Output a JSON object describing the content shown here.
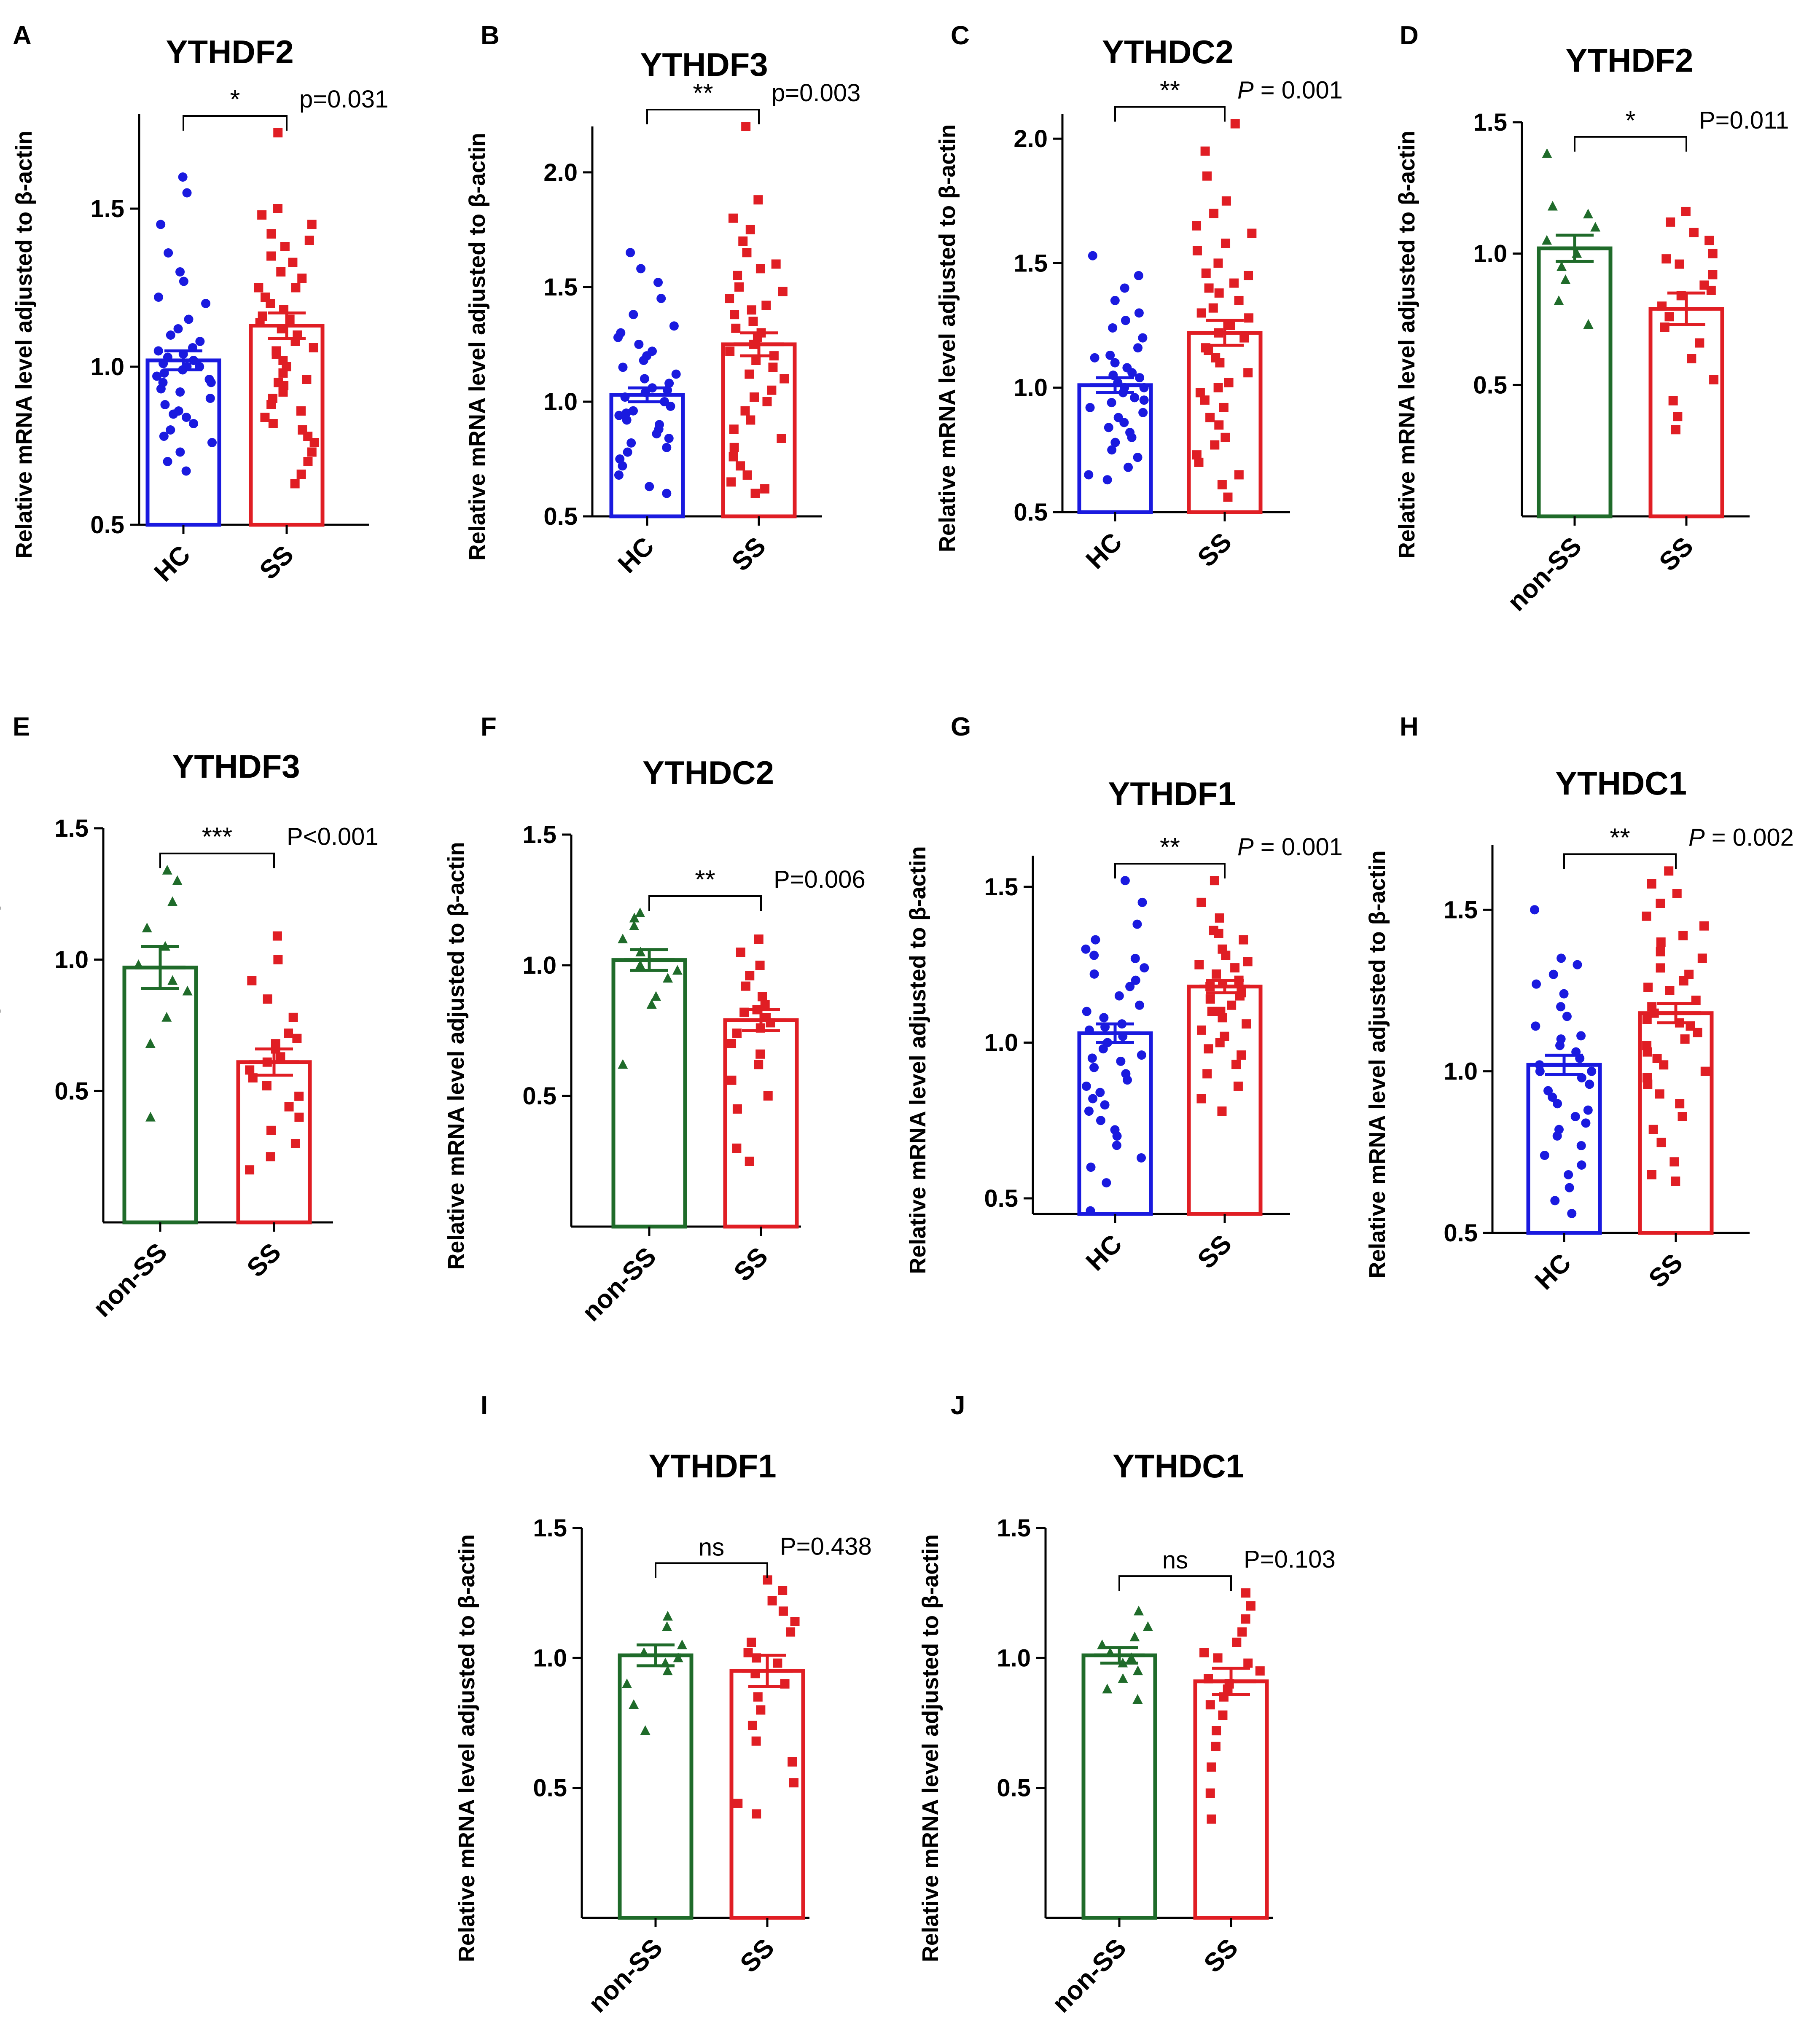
{
  "figure": {
    "ylabel": "Relative mRNA level adjusted to β-actin",
    "colors": {
      "HC": "#1a1adf",
      "SS": "#e01e24",
      "non-SS": "#1f6b2a",
      "axis": "#000000"
    }
  },
  "chart_data": [
    {
      "panel": "A",
      "type": "bar",
      "title": "YTHDF2",
      "ylabel": "Relative mRNA level adjusted to β-actin",
      "categories": [
        "HC",
        "SS"
      ],
      "ylim": [
        0.5,
        1.8
      ],
      "yticks": [
        0.5,
        1.0,
        1.5
      ],
      "means": [
        1.02,
        1.13
      ],
      "sem": [
        0.03,
        0.04
      ],
      "significance": "*",
      "pvalue": "p=0.031",
      "points": [
        [
          1.6,
          1.55,
          1.45,
          1.36,
          1.3,
          1.27,
          1.22,
          1.2,
          1.15,
          1.12,
          1.1,
          1.08,
          1.06,
          1.05,
          1.04,
          1.03,
          1.02,
          1.01,
          1.0,
          0.99,
          0.98,
          0.97,
          0.96,
          0.95,
          0.93,
          0.92,
          0.9,
          0.88,
          0.86,
          0.84,
          0.82,
          0.8,
          0.78,
          0.76,
          0.73,
          0.7,
          0.67,
          0.85,
          0.95,
          1.0
        ],
        [
          1.74,
          1.5,
          1.48,
          1.45,
          1.42,
          1.4,
          1.38,
          1.35,
          1.33,
          1.3,
          1.28,
          1.25,
          1.22,
          1.2,
          1.18,
          1.16,
          1.14,
          1.12,
          1.1,
          1.08,
          1.06,
          1.04,
          1.02,
          1.0,
          0.98,
          0.96,
          0.94,
          0.92,
          0.9,
          0.88,
          0.86,
          0.84,
          0.82,
          0.8,
          0.78,
          0.76,
          0.73,
          0.7,
          0.66,
          0.63,
          1.15,
          1.25,
          1.05,
          0.95
        ]
      ]
    },
    {
      "panel": "B",
      "type": "bar",
      "title": "YTHDF3",
      "ylabel": "Relative mRNA level adjusted to β-actin",
      "categories": [
        "HC",
        "SS"
      ],
      "ylim": [
        0.5,
        2.2
      ],
      "yticks": [
        0.5,
        1.0,
        1.5,
        2.0
      ],
      "means": [
        1.03,
        1.25
      ],
      "sem": [
        0.03,
        0.05
      ],
      "significance": "**",
      "pvalue": "p=0.003",
      "points": [
        [
          1.65,
          1.58,
          1.52,
          1.45,
          1.38,
          1.33,
          1.28,
          1.25,
          1.22,
          1.18,
          1.15,
          1.12,
          1.1,
          1.08,
          1.06,
          1.04,
          1.02,
          1.0,
          0.98,
          0.96,
          0.94,
          0.92,
          0.9,
          0.88,
          0.86,
          0.84,
          0.82,
          0.8,
          0.78,
          0.75,
          0.72,
          0.68,
          0.63,
          0.6,
          1.05,
          0.95,
          1.2,
          1.3
        ],
        [
          2.2,
          1.88,
          1.8,
          1.75,
          1.7,
          1.65,
          1.6,
          1.55,
          1.5,
          1.45,
          1.42,
          1.38,
          1.35,
          1.32,
          1.28,
          1.25,
          1.22,
          1.2,
          1.18,
          1.15,
          1.12,
          1.1,
          1.05,
          1.0,
          0.96,
          0.92,
          0.88,
          0.84,
          0.8,
          0.76,
          0.72,
          0.68,
          0.65,
          0.62,
          0.6,
          1.4,
          1.3,
          1.48,
          1.58,
          1.02
        ]
      ]
    },
    {
      "panel": "C",
      "type": "bar",
      "title": "YTHDC2",
      "ylabel": "Relative mRNA level adjusted to β-actin",
      "categories": [
        "HC",
        "SS"
      ],
      "ylim": [
        0.5,
        2.1
      ],
      "yticks": [
        0.5,
        1.0,
        1.5,
        2.0
      ],
      "means": [
        1.01,
        1.22
      ],
      "sem": [
        0.03,
        0.05
      ],
      "significance": "**",
      "pvalue": "P = 0.001",
      "points": [
        [
          1.53,
          1.45,
          1.4,
          1.35,
          1.3,
          1.27,
          1.24,
          1.2,
          1.16,
          1.13,
          1.1,
          1.08,
          1.06,
          1.04,
          1.02,
          1.0,
          0.98,
          0.96,
          0.94,
          0.92,
          0.9,
          0.88,
          0.86,
          0.84,
          0.82,
          0.8,
          0.78,
          0.75,
          0.72,
          0.68,
          0.65,
          0.63,
          1.05,
          0.95,
          1.0,
          1.12
        ],
        [
          2.06,
          1.95,
          1.85,
          1.75,
          1.7,
          1.65,
          1.62,
          1.58,
          1.55,
          1.5,
          1.46,
          1.42,
          1.4,
          1.35,
          1.32,
          1.28,
          1.25,
          1.22,
          1.2,
          1.16,
          1.12,
          1.1,
          1.06,
          1.02,
          0.98,
          0.95,
          0.92,
          0.88,
          0.85,
          0.8,
          0.77,
          0.73,
          0.7,
          0.65,
          0.61,
          0.56,
          1.45,
          1.3,
          1.38,
          1.15,
          1.0
        ]
      ]
    },
    {
      "panel": "D",
      "type": "bar",
      "title": "YTHDF2",
      "ylabel": "Relative mRNA level adjusted to β-actin",
      "categories": [
        "non-SS",
        "SS"
      ],
      "ylim": [
        0.0,
        1.5
      ],
      "yticks": [
        0.5,
        1.0,
        1.5
      ],
      "means": [
        1.02,
        0.79
      ],
      "sem": [
        0.05,
        0.06
      ],
      "significance": "*",
      "pvalue": "P=0.011",
      "points": [
        [
          1.38,
          1.18,
          1.15,
          1.1,
          1.05,
          1.0,
          0.95,
          0.9,
          0.82,
          0.73
        ],
        [
          1.16,
          1.12,
          1.08,
          1.05,
          1.0,
          0.96,
          0.92,
          0.88,
          0.84,
          0.8,
          0.76,
          0.72,
          0.66,
          0.6,
          0.52,
          0.44,
          0.38,
          0.33,
          0.98,
          0.86
        ]
      ]
    },
    {
      "panel": "E",
      "type": "bar",
      "title": "YTHDF3",
      "ylabel": "Relative mRNA level adjusted to β-actin",
      "categories": [
        "non-SS",
        "SS"
      ],
      "ylim": [
        0.0,
        1.5
      ],
      "yticks": [
        0.5,
        1.0,
        1.5
      ],
      "means": [
        0.97,
        0.61
      ],
      "sem": [
        0.08,
        0.05
      ],
      "significance": "***",
      "pvalue": "P<0.001",
      "points": [
        [
          1.34,
          1.3,
          1.22,
          1.12,
          1.05,
          0.98,
          0.92,
          0.88,
          0.78,
          0.68,
          0.4
        ],
        [
          1.09,
          1.0,
          0.92,
          0.85,
          0.78,
          0.72,
          0.68,
          0.66,
          0.63,
          0.61,
          0.58,
          0.55,
          0.52,
          0.48,
          0.44,
          0.4,
          0.35,
          0.3,
          0.25,
          0.2,
          0.7
        ]
      ]
    },
    {
      "panel": "F",
      "type": "bar",
      "title": "YTHDC2",
      "ylabel": "Relative mRNA level adjusted to β-actin",
      "categories": [
        "non-SS",
        "SS"
      ],
      "ylim": [
        0.0,
        1.5
      ],
      "yticks": [
        0.5,
        1.0,
        1.5
      ],
      "means": [
        1.02,
        0.79
      ],
      "sem": [
        0.04,
        0.04
      ],
      "significance": "**",
      "pvalue": "P=0.006",
      "points": [
        [
          1.2,
          1.18,
          1.15,
          1.1,
          1.05,
          1.0,
          0.98,
          0.95,
          0.88,
          0.85,
          0.62
        ],
        [
          1.1,
          1.05,
          1.0,
          0.96,
          0.92,
          0.88,
          0.85,
          0.82,
          0.8,
          0.78,
          0.76,
          0.74,
          0.7,
          0.66,
          0.62,
          0.56,
          0.5,
          0.45,
          0.3,
          0.25,
          0.83
        ]
      ]
    },
    {
      "panel": "G",
      "type": "bar",
      "title": "YTHDF1",
      "ylabel": "Relative mRNA level adjusted to β-actin",
      "categories": [
        "HC",
        "SS"
      ],
      "ylim": [
        0.45,
        1.6
      ],
      "yticks": [
        0.5,
        1.0,
        1.5
      ],
      "means": [
        1.03,
        1.18
      ],
      "sem": [
        0.03,
        0.02
      ],
      "significance": "**",
      "pvalue": "P = 0.001",
      "points": [
        [
          1.52,
          1.45,
          1.38,
          1.33,
          1.3,
          1.27,
          1.24,
          1.2,
          1.18,
          1.15,
          1.12,
          1.1,
          1.08,
          1.06,
          1.04,
          1.02,
          1.0,
          0.98,
          0.96,
          0.94,
          0.92,
          0.9,
          0.88,
          0.86,
          0.84,
          0.82,
          0.8,
          0.78,
          0.75,
          0.72,
          0.7,
          0.67,
          0.63,
          0.6,
          0.55,
          0.46,
          1.28,
          1.22,
          1.05,
          0.95
        ],
        [
          1.52,
          1.45,
          1.4,
          1.36,
          1.33,
          1.3,
          1.28,
          1.26,
          1.24,
          1.22,
          1.2,
          1.19,
          1.18,
          1.16,
          1.14,
          1.12,
          1.1,
          1.08,
          1.06,
          1.04,
          1.02,
          1.0,
          0.98,
          0.96,
          0.93,
          0.9,
          0.86,
          0.82,
          0.78,
          1.15,
          1.25,
          1.35,
          1.1
        ]
      ]
    },
    {
      "panel": "H",
      "type": "bar",
      "title": "YTHDC1",
      "ylabel": "Relative mRNA level adjusted to β-actin",
      "categories": [
        "HC",
        "SS"
      ],
      "ylim": [
        0.5,
        1.7
      ],
      "yticks": [
        0.5,
        1.0,
        1.5
      ],
      "means": [
        1.02,
        1.18
      ],
      "sem": [
        0.03,
        0.03
      ],
      "significance": "**",
      "pvalue": "P = 0.002",
      "points": [
        [
          1.5,
          1.35,
          1.33,
          1.3,
          1.27,
          1.24,
          1.2,
          1.17,
          1.14,
          1.11,
          1.08,
          1.06,
          1.04,
          1.02,
          1.0,
          0.98,
          0.96,
          0.94,
          0.92,
          0.9,
          0.88,
          0.86,
          0.84,
          0.82,
          0.8,
          0.77,
          0.74,
          0.71,
          0.68,
          0.64,
          0.6,
          0.56,
          1.0,
          1.1
        ],
        [
          1.62,
          1.58,
          1.55,
          1.52,
          1.48,
          1.45,
          1.42,
          1.4,
          1.37,
          1.35,
          1.32,
          1.3,
          1.28,
          1.25,
          1.22,
          1.2,
          1.18,
          1.16,
          1.14,
          1.12,
          1.1,
          1.08,
          1.06,
          1.04,
          1.02,
          1.0,
          0.98,
          0.96,
          0.93,
          0.9,
          0.86,
          0.82,
          0.78,
          0.72,
          0.68,
          0.66,
          1.26,
          1.15
        ]
      ]
    },
    {
      "panel": "I",
      "type": "bar",
      "title": "YTHDF1",
      "ylabel": "Relative mRNA level adjusted to β-actin",
      "categories": [
        "non-SS",
        "SS"
      ],
      "ylim": [
        0.0,
        1.5
      ],
      "yticks": [
        0.5,
        1.0,
        1.5
      ],
      "means": [
        1.01,
        0.95
      ],
      "sem": [
        0.04,
        0.06
      ],
      "significance": "ns",
      "pvalue": "P=0.438",
      "points": [
        [
          1.16,
          1.12,
          1.05,
          1.02,
          1.0,
          0.98,
          0.95,
          0.9,
          0.82,
          0.72
        ],
        [
          1.3,
          1.26,
          1.22,
          1.18,
          1.14,
          1.1,
          1.06,
          1.02,
          0.98,
          0.94,
          0.9,
          0.85,
          0.8,
          0.74,
          0.68,
          0.6,
          0.52,
          0.44,
          0.4,
          1.0
        ]
      ]
    },
    {
      "panel": "J",
      "type": "bar",
      "title": "YTHDC1",
      "ylabel": "Relative mRNA level adjusted to β-actin",
      "categories": [
        "non-SS",
        "SS"
      ],
      "ylim": [
        0.0,
        1.5
      ],
      "yticks": [
        0.5,
        1.0,
        1.5
      ],
      "means": [
        1.01,
        0.91
      ],
      "sem": [
        0.03,
        0.05
      ],
      "significance": "ns",
      "pvalue": "P=0.103",
      "points": [
        [
          1.18,
          1.12,
          1.08,
          1.05,
          1.02,
          1.0,
          0.98,
          0.95,
          0.92,
          0.88,
          0.84
        ],
        [
          1.25,
          1.2,
          1.15,
          1.1,
          1.06,
          1.02,
          0.98,
          0.95,
          0.92,
          0.9,
          0.88,
          0.85,
          0.82,
          0.78,
          0.72,
          0.66,
          0.58,
          0.48,
          0.38,
          1.0
        ]
      ]
    }
  ]
}
